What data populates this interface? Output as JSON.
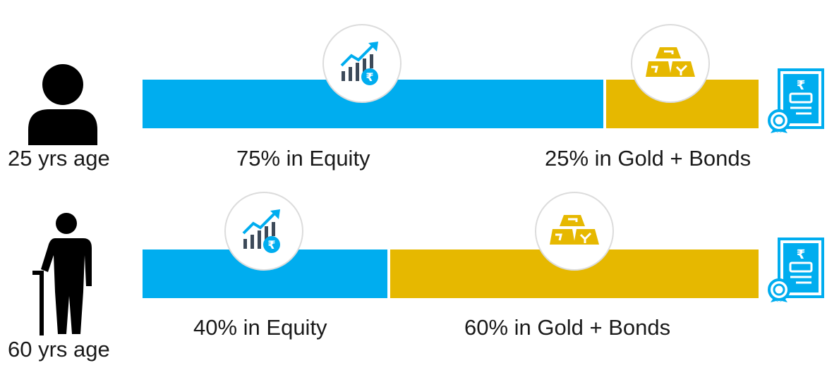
{
  "colors": {
    "equity": "#00adef",
    "gold_bonds": "#e6b800",
    "icon_dark": "#3d4a59",
    "person": "#000000"
  },
  "icons": {
    "equity": "growth-chart-rupee-icon",
    "gold": "gold-bars-icon",
    "certificate": "bond-certificate-icon"
  },
  "chart_data": {
    "type": "bar",
    "orientation": "horizontal-stacked",
    "categories": [
      "25 yrs age",
      "60 yrs age"
    ],
    "series": [
      {
        "name": "Equity",
        "values": [
          75,
          40
        ]
      },
      {
        "name": "Gold + Bonds",
        "values": [
          25,
          60
        ]
      }
    ],
    "unit": "%"
  },
  "rows": [
    {
      "age_label": "25 yrs age",
      "equity_label": "75% in Equity",
      "gold_label": "25% in Gold + Bonds"
    },
    {
      "age_label": "60 yrs age",
      "equity_label": "40% in Equity",
      "gold_label": "60% in Gold + Bonds"
    }
  ]
}
